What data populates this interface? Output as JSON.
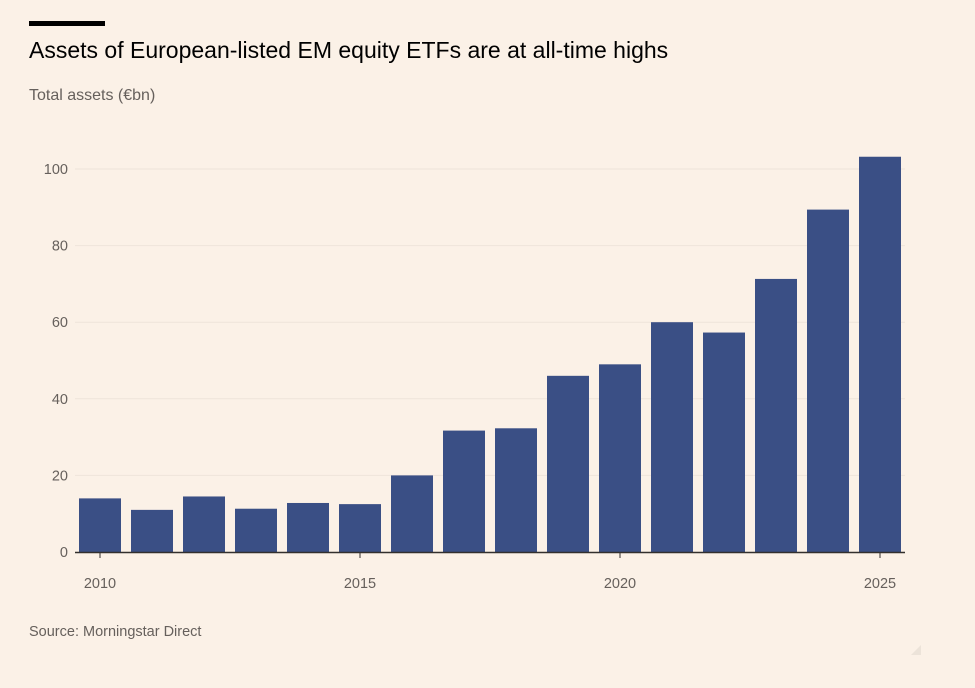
{
  "title": "Assets of European-listed EM equity ETFs are at all-time highs",
  "subtitle": "Total assets (€bn)",
  "source": "Source: Morningstar Direct",
  "colors": {
    "background": "#fbf1e7",
    "bar": "#3a4f85",
    "gridline": "#eee4da",
    "axis": "#33302e"
  },
  "chart_data": {
    "type": "bar",
    "title": "Assets of European-listed EM equity ETFs are at all-time highs",
    "ylabel": "Total assets (€bn)",
    "xlabel": "",
    "categories": [
      2010,
      2011,
      2012,
      2013,
      2014,
      2015,
      2016,
      2017,
      2018,
      2019,
      2020,
      2021,
      2022,
      2023,
      2024,
      2025
    ],
    "values": [
      14,
      11,
      14.5,
      11.3,
      12.8,
      12.5,
      20,
      31.7,
      32.3,
      46,
      49,
      60,
      57.3,
      71.3,
      89.4,
      103.2
    ],
    "ylim": [
      0,
      105
    ],
    "yticks": [
      0,
      20,
      40,
      60,
      80,
      100
    ],
    "xtick_labels": [
      "2010",
      "2015",
      "2020",
      "2025"
    ],
    "grid": true,
    "legend": "none"
  }
}
